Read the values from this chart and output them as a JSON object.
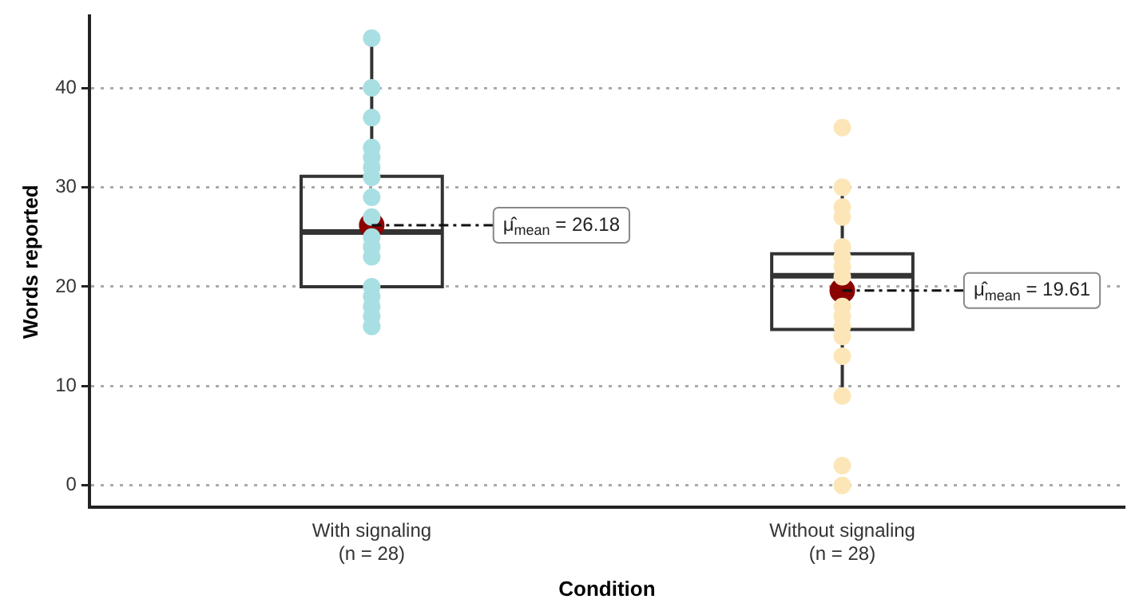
{
  "chart_data": {
    "type": "box",
    "xlabel": "Condition",
    "ylabel": "Words reported",
    "categories": [
      "With signaling\n(n = 28)",
      "Without signaling\n(n = 28)"
    ],
    "ylim": [
      -2.2,
      47.2
    ],
    "yticks": [
      0,
      10,
      20,
      30,
      40
    ],
    "grid": "y",
    "legend": false,
    "boxes": [
      {
        "low": 16,
        "q1": 20,
        "median": 25.5,
        "q3": 31.1,
        "high": 45,
        "mean": 26.18
      },
      {
        "low": 9,
        "q1": 15.7,
        "median": 21.1,
        "q3": 23.3,
        "high": 30,
        "mean": 19.61
      }
    ],
    "series": [
      {
        "type": "scatter",
        "color": "#a8dfe3",
        "x": [
          "With signaling\n(n = 28)",
          "With signaling\n(n = 28)",
          "With signaling\n(n = 28)",
          "With signaling\n(n = 28)",
          "With signaling\n(n = 28)",
          "With signaling\n(n = 28)",
          "With signaling\n(n = 28)",
          "With signaling\n(n = 28)",
          "With signaling\n(n = 28)",
          "With signaling\n(n = 28)",
          "With signaling\n(n = 28)",
          "With signaling\n(n = 28)",
          "With signaling\n(n = 28)",
          "With signaling\n(n = 28)",
          "With signaling\n(n = 28)",
          "With signaling\n(n = 28)",
          "With signaling\n(n = 28)"
        ],
        "values": [
          45,
          40,
          37,
          34,
          33,
          32,
          31,
          29,
          27,
          25,
          24,
          23,
          20,
          19,
          18,
          17,
          16
        ]
      },
      {
        "type": "scatter",
        "color": "#fce6b8",
        "x": [
          "Without signaling\n(n = 28)",
          "Without signaling\n(n = 28)",
          "Without signaling\n(n = 28)",
          "Without signaling\n(n = 28)",
          "Without signaling\n(n = 28)",
          "Without signaling\n(n = 28)",
          "Without signaling\n(n = 28)",
          "Without signaling\n(n = 28)",
          "Without signaling\n(n = 28)",
          "Without signaling\n(n = 28)",
          "Without signaling\n(n = 28)",
          "Without signaling\n(n = 28)",
          "Without signaling\n(n = 28)",
          "Without signaling\n(n = 28)",
          "Without signaling\n(n = 28)",
          "Without signaling\n(n = 28)"
        ],
        "values": [
          36,
          30,
          28,
          27,
          24,
          23,
          22,
          21,
          18,
          17,
          16,
          15,
          13,
          9,
          2,
          0
        ]
      }
    ],
    "annotations": [
      {
        "text": "μ̂$_{mean}$ = 26.18",
        "x": "With signaling\n(n = 28)",
        "y": 26.18
      },
      {
        "text": "μ̂$_{mean}$ = 19.61",
        "x": "Without signaling\n(n = 28)",
        "y": 19.61
      }
    ]
  }
}
